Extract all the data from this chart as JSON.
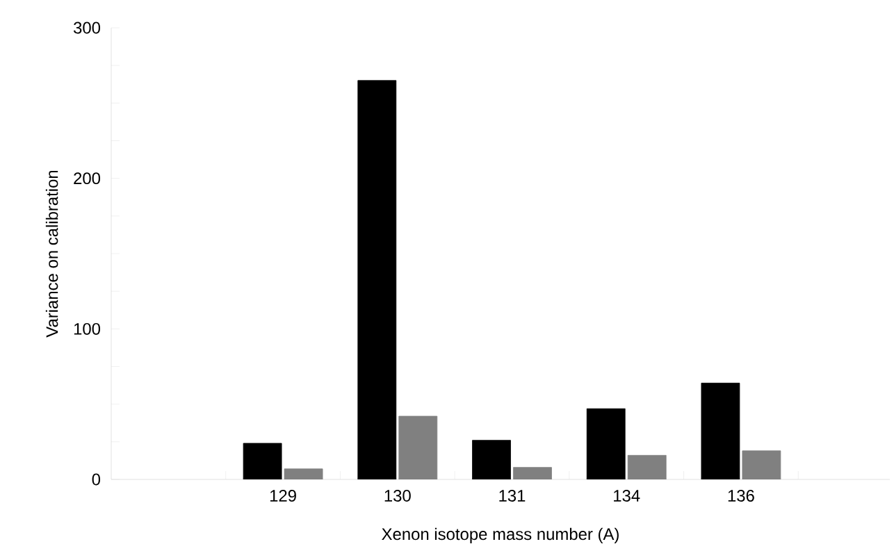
{
  "chart_data": {
    "type": "bar",
    "xlabel": "Xenon isotope mass number (A)",
    "ylabel": "Variance on calibration",
    "categories": [
      "129",
      "130",
      "131",
      "134",
      "136"
    ],
    "series": [
      {
        "color": "#000000",
        "values": [
          24,
          265,
          26,
          47,
          64
        ]
      },
      {
        "color": "#808080",
        "values": [
          7,
          42,
          8,
          16,
          19
        ]
      }
    ],
    "ylim": [
      0,
      300
    ],
    "yticks": [
      0,
      100,
      200,
      300
    ],
    "grid": false
  }
}
